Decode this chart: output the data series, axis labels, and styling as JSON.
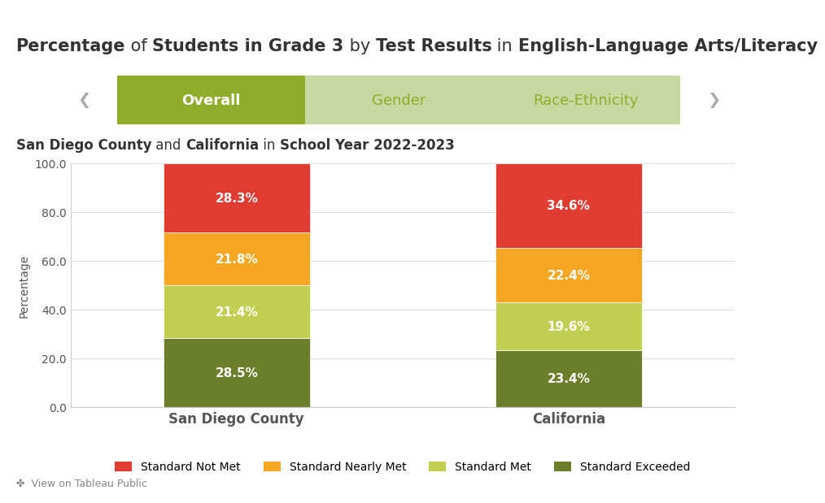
{
  "title_parts": [
    {
      "text": "Percentage",
      "bold": true
    },
    {
      "text": " of ",
      "bold": false
    },
    {
      "text": "Students in Grade 3",
      "bold": true
    },
    {
      "text": " by ",
      "bold": false
    },
    {
      "text": "Test Results",
      "bold": true
    },
    {
      "text": " in ",
      "bold": false
    },
    {
      "text": "English-Language Arts/Literacy",
      "bold": true
    }
  ],
  "title_str": "Percentage of Students in Grade 3 by Test Results in English-Language Arts/Literacy",
  "subtitle_parts": [
    {
      "text": "San Diego County",
      "bold": true
    },
    {
      "text": " and ",
      "bold": false
    },
    {
      "text": "California",
      "bold": true
    },
    {
      "text": " in ",
      "bold": false
    },
    {
      "text": "School Year 2022-2023",
      "bold": true
    }
  ],
  "tab_labels": [
    "Overall",
    "Gender",
    "Race-Ethnicity"
  ],
  "tab_active_color": "#8fac2b",
  "tab_inactive_color": "#c8d8a0",
  "tab_active_text_color": "#ffffff",
  "tab_inactive_text_color": "#8fac2b",
  "categories": [
    "San Diego County",
    "California"
  ],
  "segments": [
    {
      "label": "Standard Not Met",
      "color": "#e03c31",
      "values": [
        28.3,
        34.6
      ]
    },
    {
      "label": "Standard Nearly Met",
      "color": "#f5a623",
      "values": [
        21.8,
        22.4
      ]
    },
    {
      "label": "Standard Met",
      "color": "#c2ce52",
      "values": [
        21.4,
        19.6
      ]
    },
    {
      "label": "Standard Exceeded",
      "color": "#6b7f2a",
      "values": [
        28.5,
        23.4
      ]
    }
  ],
  "ylabel": "Percentage",
  "ylim": [
    0,
    100
  ],
  "yticks": [
    0.0,
    20.0,
    40.0,
    60.0,
    80.0,
    100.0
  ],
  "background_color": "#ffffff",
  "bar_width": 0.35,
  "bar_positions": [
    0.3,
    0.7
  ],
  "title_fontsize": 15,
  "subtitle_fontsize": 12,
  "axis_label_fontsize": 10,
  "tick_fontsize": 10,
  "legend_fontsize": 10,
  "value_fontsize": 11,
  "footer_color": "#aaaaaa",
  "grid_color": "#dddddd"
}
